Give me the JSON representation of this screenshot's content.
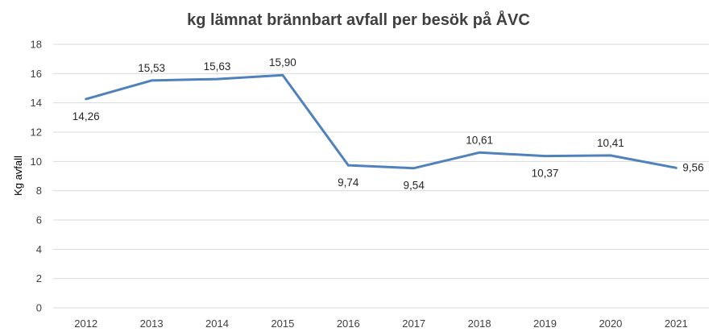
{
  "chart_data": {
    "type": "line",
    "title": "kg lämnat brännbart avfall per besök på ÅVC",
    "xlabel": "",
    "ylabel": "Kg avfall",
    "categories": [
      "2012",
      "2013",
      "2014",
      "2015",
      "2016",
      "2017",
      "2018",
      "2019",
      "2020",
      "2021"
    ],
    "series": [
      {
        "values": [
          14.26,
          15.53,
          15.63,
          15.9,
          9.74,
          9.54,
          10.61,
          10.37,
          10.41,
          9.56
        ],
        "labels": [
          "14,26",
          "15,53",
          "15,63",
          "15,90",
          "9,74",
          "9,54",
          "10,61",
          "10,37",
          "10,41",
          "9,56"
        ],
        "label_positions": [
          "below",
          "above",
          "above",
          "above",
          "below",
          "below",
          "above",
          "below",
          "above",
          "right"
        ]
      }
    ],
    "ylim": [
      0,
      18
    ],
    "yticks": [
      "0",
      "2",
      "4",
      "6",
      "8",
      "10",
      "12",
      "14",
      "16",
      "18"
    ],
    "grid": true,
    "legend": "none",
    "colors": {
      "line": "#4f81bd",
      "grid": "#d9d9d9",
      "text": "#404040"
    }
  }
}
